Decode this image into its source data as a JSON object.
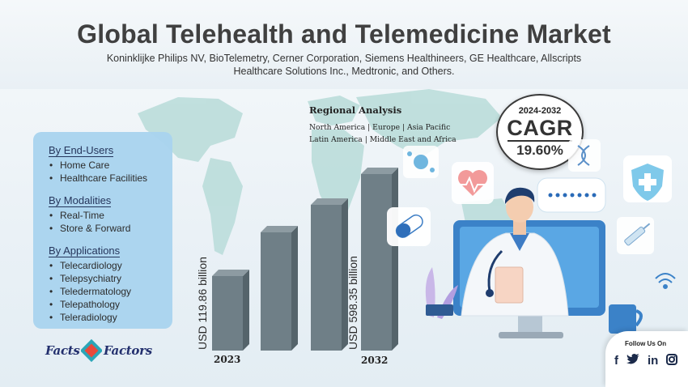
{
  "header": {
    "title": "Global Telehealth and Telemedicine Market",
    "subtitle_line1": "Koninklijke Philips NV, BioTelemetry, Cerner Corporation, Siemens Healthineers, GE Healthcare, Allscripts",
    "subtitle_line2": "Healthcare Solutions Inc., Medtronic, and Others."
  },
  "regional": {
    "title": "Regional Analysis",
    "line1": "North America | Europe | Asia Pacific",
    "line2": "Latin America | Middle East and Africa"
  },
  "cagr": {
    "years": "2024-2032",
    "label": "CAGR",
    "value": "19.60%"
  },
  "segments": {
    "end_users": {
      "title": "By End-Users",
      "items": [
        "Home Care",
        "Healthcare Facilities"
      ]
    },
    "modalities": {
      "title": "By Modalities",
      "items": [
        "Real-Time",
        "Store & Forward"
      ]
    },
    "applications": {
      "title": "By Applications",
      "items": [
        "Telecardiology",
        "Telepsychiatry",
        "Teledermatology",
        "Telepathology",
        "Teleradiology"
      ]
    }
  },
  "chart": {
    "start_year": "2023",
    "end_year": "2032",
    "start_value_label": "USD 119.86 billion",
    "end_value_label": "USD 598.35 billion",
    "bar_color": "#6f7f87"
  },
  "chart_data": {
    "type": "bar",
    "categories": [
      "2023",
      "",
      "",
      "",
      "2032"
    ],
    "values": [
      119.86,
      null,
      null,
      null,
      598.35
    ],
    "title": "",
    "xlabel": "",
    "ylabel": ""
  },
  "follow": {
    "title": "Follow Us On",
    "icons": [
      "facebook-icon",
      "twitter-icon",
      "linkedin-icon",
      "instagram-icon"
    ]
  },
  "logo": {
    "text_left": "Facts",
    "text_right": "Factors",
    "brand_color": "#23306e"
  }
}
